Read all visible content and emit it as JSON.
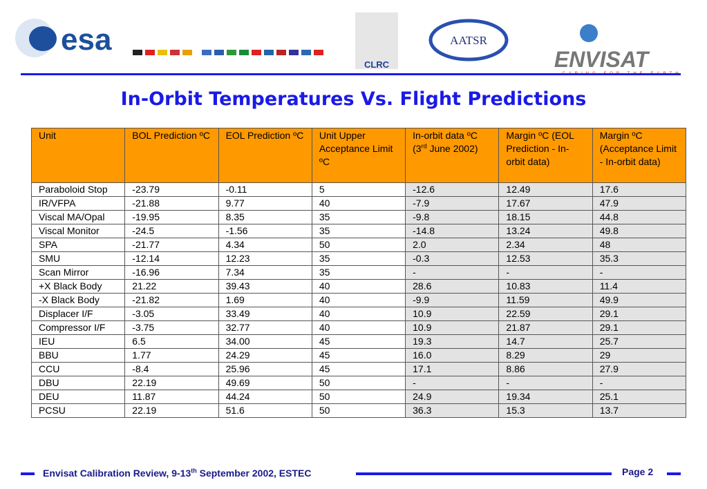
{
  "header": {
    "logos": {
      "esa": "esa",
      "clrc": "CLRC",
      "aatsr": "AATSR",
      "envisat": "ENVISAT",
      "envisat_tagline": "CARING FOR THE EARTH"
    }
  },
  "title": "In-Orbit Temperatures Vs. Flight Predictions",
  "table": {
    "columns": [
      "Unit",
      "BOL Prediction ºC",
      "EOL Prediction ºC",
      "Unit Upper Acceptance Limit ºC",
      {
        "before": "In-orbit data ºC (3",
        "sup": "rd",
        "after": " June 2002)"
      },
      "Margin ºC (EOL Prediction - In-orbit data)",
      "Margin ºC (Acceptance Limit - In-orbit data)"
    ],
    "rows": [
      [
        "Paraboloid Stop",
        "-23.79",
        "-0.11",
        "5",
        "-12.6",
        "12.49",
        "17.6"
      ],
      [
        "IR/VFPA",
        "-21.88",
        "9.77",
        "40",
        "-7.9",
        "17.67",
        "47.9"
      ],
      [
        "Viscal MA/Opal",
        "-19.95",
        "8.35",
        "35",
        "-9.8",
        "18.15",
        "44.8"
      ],
      [
        "Viscal Monitor",
        "-24.5",
        "-1.56",
        "35",
        "-14.8",
        "13.24",
        "49.8"
      ],
      [
        "SPA",
        "-21.77",
        "4.34",
        "50",
        "2.0",
        "2.34",
        "48"
      ],
      [
        "SMU",
        "-12.14",
        "12.23",
        "35",
        "-0.3",
        "12.53",
        "35.3"
      ],
      [
        "Scan Mirror",
        "-16.96",
        "7.34",
        "35",
        "-",
        "-",
        "-"
      ],
      [
        "+X Black Body",
        "21.22",
        "39.43",
        "40",
        "28.6",
        "10.83",
        "11.4"
      ],
      [
        "-X Black Body",
        "-21.82",
        "1.69",
        "40",
        "-9.9",
        "11.59",
        "49.9"
      ],
      [
        "Displacer I/F",
        "-3.05",
        "33.49",
        "40",
        "10.9",
        "22.59",
        "29.1"
      ],
      [
        "Compressor I/F",
        "-3.75",
        "32.77",
        "40",
        "10.9",
        "21.87",
        "29.1"
      ],
      [
        "IEU",
        "6.5",
        "34.00",
        "45",
        "19.3",
        "14.7",
        "25.7"
      ],
      [
        "BBU",
        "1.77",
        "24.29",
        "45",
        "16.0",
        "8.29",
        "29"
      ],
      [
        "CCU",
        "-8.4",
        "25.96",
        "45",
        "17.1",
        "8.86",
        "27.9"
      ],
      [
        "DBU",
        "22.19",
        "49.69",
        "50",
        "-",
        "-",
        "-"
      ],
      [
        "DEU",
        "11.87",
        "44.24",
        "50",
        "24.9",
        "19.34",
        "25.1"
      ],
      [
        "PCSU",
        "22.19",
        "51.6",
        "50",
        "36.3",
        "15.3",
        "13.7"
      ]
    ]
  },
  "footer": {
    "event": {
      "before": "Envisat Calibration Review, 9-13",
      "sup": "th",
      "after": " September 2002,  ESTEC"
    },
    "page": "Page 2"
  }
}
